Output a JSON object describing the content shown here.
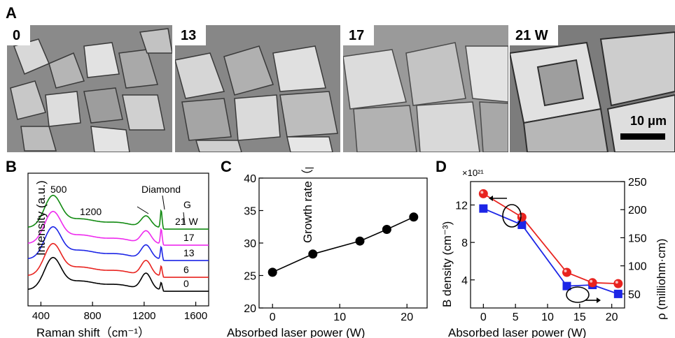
{
  "panel_letters": {
    "a": "A",
    "b": "B",
    "c": "C",
    "d": "D"
  },
  "sem_panels": [
    {
      "label": "0"
    },
    {
      "label": "13"
    },
    {
      "label": "17"
    },
    {
      "label": "21 W"
    }
  ],
  "scale_bar": {
    "label": "10 μm",
    "value_um": 10
  },
  "chart_data": [
    {
      "panel": "B",
      "type": "line",
      "xlabel": "Raman shift（cm⁻¹）",
      "ylabel": "Intensity  (a.u.)",
      "xlim": [
        300,
        1700
      ],
      "xticks": [
        400,
        800,
        1200,
        1600
      ],
      "series": [
        {
          "name": "0",
          "color": "#000000"
        },
        {
          "name": "6",
          "color": "#e8231f"
        },
        {
          "name": "13",
          "color": "#1c25e6"
        },
        {
          "name": "17",
          "color": "#ee2aee"
        },
        {
          "name": "21 W",
          "color": "#118a11"
        }
      ],
      "annotations": [
        "500",
        "1200",
        "Diamond",
        "G"
      ]
    },
    {
      "panel": "C",
      "type": "line",
      "xlabel": "Absorbed laser power  (W)",
      "ylabel": "Growth rate（μm/hour）",
      "xlim": [
        -2,
        23
      ],
      "ylim": [
        20,
        40
      ],
      "xticks": [
        0,
        10,
        20
      ],
      "yticks": [
        20,
        25,
        30,
        35,
        40
      ],
      "x": [
        0,
        6,
        13,
        17,
        21
      ],
      "values": [
        25.5,
        28.3,
        30.3,
        32.1,
        34.0
      ],
      "color": "#000000"
    },
    {
      "panel": "D",
      "type": "line",
      "xlabel": "Absorbed laser power  (W)",
      "ylabel": "B density  (cm⁻³)",
      "y2label": "ρ  (milliohm·cm)",
      "y_multiplier": "×10²¹",
      "xlim": [
        -2,
        22
      ],
      "ylim": [
        1,
        14.5
      ],
      "y2lim": [
        25,
        250
      ],
      "xticks": [
        0,
        5,
        10,
        15,
        20
      ],
      "yticks": [
        4,
        8,
        12
      ],
      "y2ticks": [
        50,
        100,
        150,
        200,
        250
      ],
      "x": [
        0,
        6,
        13,
        17,
        21
      ],
      "series": [
        {
          "axis": "left",
          "marker": "circle",
          "color": "#e8231f",
          "values": [
            13.2,
            10.7,
            4.8,
            3.7,
            3.6
          ]
        },
        {
          "axis": "right",
          "marker": "square",
          "color": "#1c25e6",
          "values": [
            202,
            173,
            64,
            66,
            50
          ]
        }
      ]
    }
  ]
}
